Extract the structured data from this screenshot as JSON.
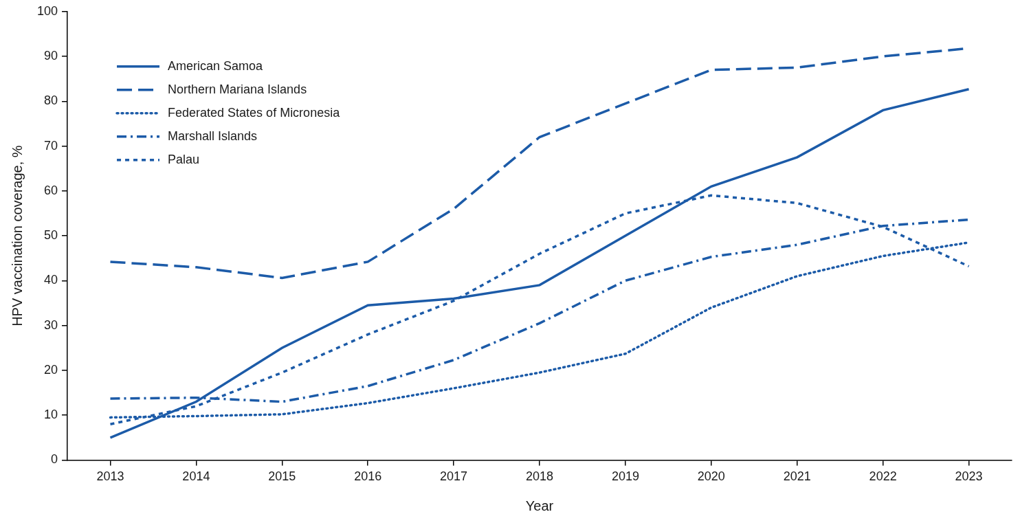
{
  "chart_data": {
    "type": "line",
    "x_label": "Year",
    "y_label": "HPV vaccination coverage, %",
    "categories": [
      2013,
      2014,
      2015,
      2016,
      2017,
      2018,
      2019,
      2020,
      2021,
      2022,
      2023
    ],
    "series": [
      {
        "name": "American Samoa",
        "color": "#1c5ba8",
        "line_style": "solid",
        "values": [
          5,
          13,
          25,
          34.5,
          36,
          39,
          50,
          61,
          67.5,
          78,
          82.7
        ]
      },
      {
        "name": "Northern Mariana Islands",
        "color": "#1c5ba8",
        "line_style": "dashed",
        "values": [
          44.2,
          43,
          40.6,
          44.2,
          56,
          72,
          79.5,
          87,
          87.5,
          90,
          91.8
        ]
      },
      {
        "name": "Federated States of Micronesia",
        "color": "#1c5ba8",
        "line_style": "dotted",
        "values": [
          9.5,
          9.8,
          10.2,
          12.7,
          16,
          19.5,
          23.7,
          34,
          41,
          45.5,
          48.5
        ]
      },
      {
        "name": "Marshall Islands",
        "color": "#1c5ba8",
        "line_style": "dashdot",
        "values": [
          13.7,
          13.9,
          13,
          16.5,
          22.3,
          30.5,
          40,
          45.3,
          48,
          52.2,
          53.6
        ]
      },
      {
        "name": "Palau",
        "color": "#1c5ba8",
        "line_style": "shortdash",
        "values": [
          8,
          12,
          19.5,
          28,
          35.5,
          46,
          55,
          59,
          57.3,
          52,
          43.2
        ]
      }
    ],
    "ylim": [
      0,
      100
    ],
    "yticks": [
      0,
      10,
      20,
      30,
      40,
      50,
      60,
      70,
      80,
      90,
      100
    ],
    "grid": false,
    "legend": "upper left"
  }
}
